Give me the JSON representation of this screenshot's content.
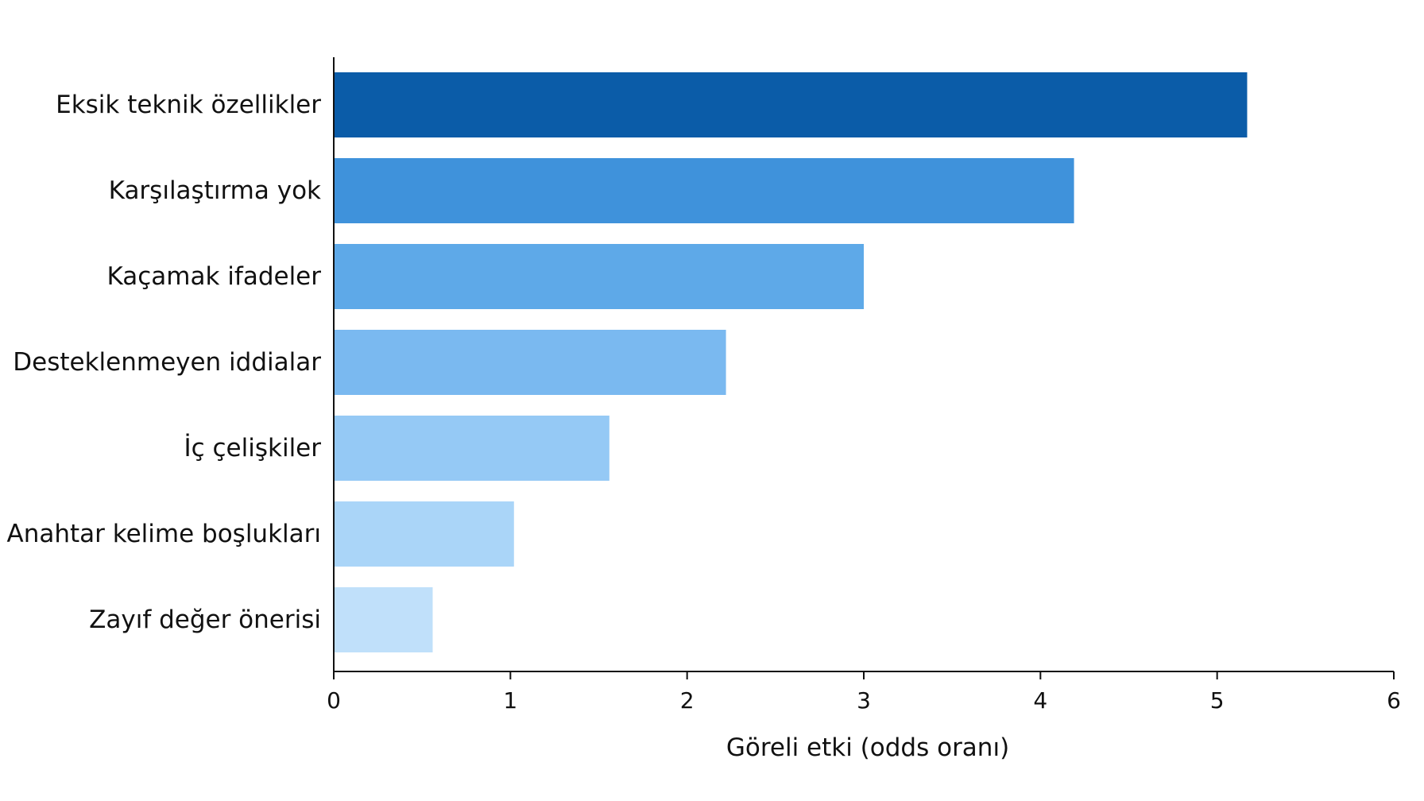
{
  "chart_data": {
    "type": "bar",
    "orientation": "horizontal",
    "categories": [
      "Eksik teknik özellikler",
      "Karşılaştırma yok",
      "Kaçamak ifadeler",
      "Desteklenmeyen iddialar",
      "İç çelişkiler",
      "Anahtar kelime boşlukları",
      "Zayıf değer önerisi"
    ],
    "values": [
      5.17,
      4.19,
      3.0,
      2.22,
      1.56,
      1.02,
      0.56
    ],
    "colors": [
      "#0b5ca8",
      "#3f92db",
      "#5ea9e8",
      "#7ab9f0",
      "#95c9f5",
      "#aad5f8",
      "#c0e0fa"
    ],
    "xlabel": "Göreli etki (odds oranı)",
    "ylabel": "",
    "title": "",
    "xlim": [
      0,
      6
    ],
    "xticks": [
      0,
      1,
      2,
      3,
      4,
      5,
      6
    ],
    "grid": false,
    "legend": "none"
  }
}
